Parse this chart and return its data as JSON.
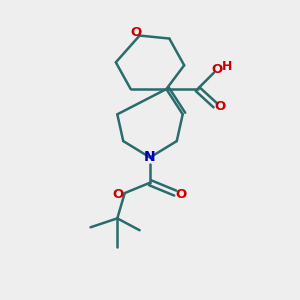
{
  "background_color": "#eeeeee",
  "bond_color": "#2a6b6b",
  "oxygen_color": "#cc0000",
  "nitrogen_color": "#0000bb",
  "line_width": 1.8,
  "figsize": [
    3.0,
    3.0
  ],
  "dpi": 100,
  "xlim": [
    0,
    10
  ],
  "ylim": [
    0,
    10
  ]
}
